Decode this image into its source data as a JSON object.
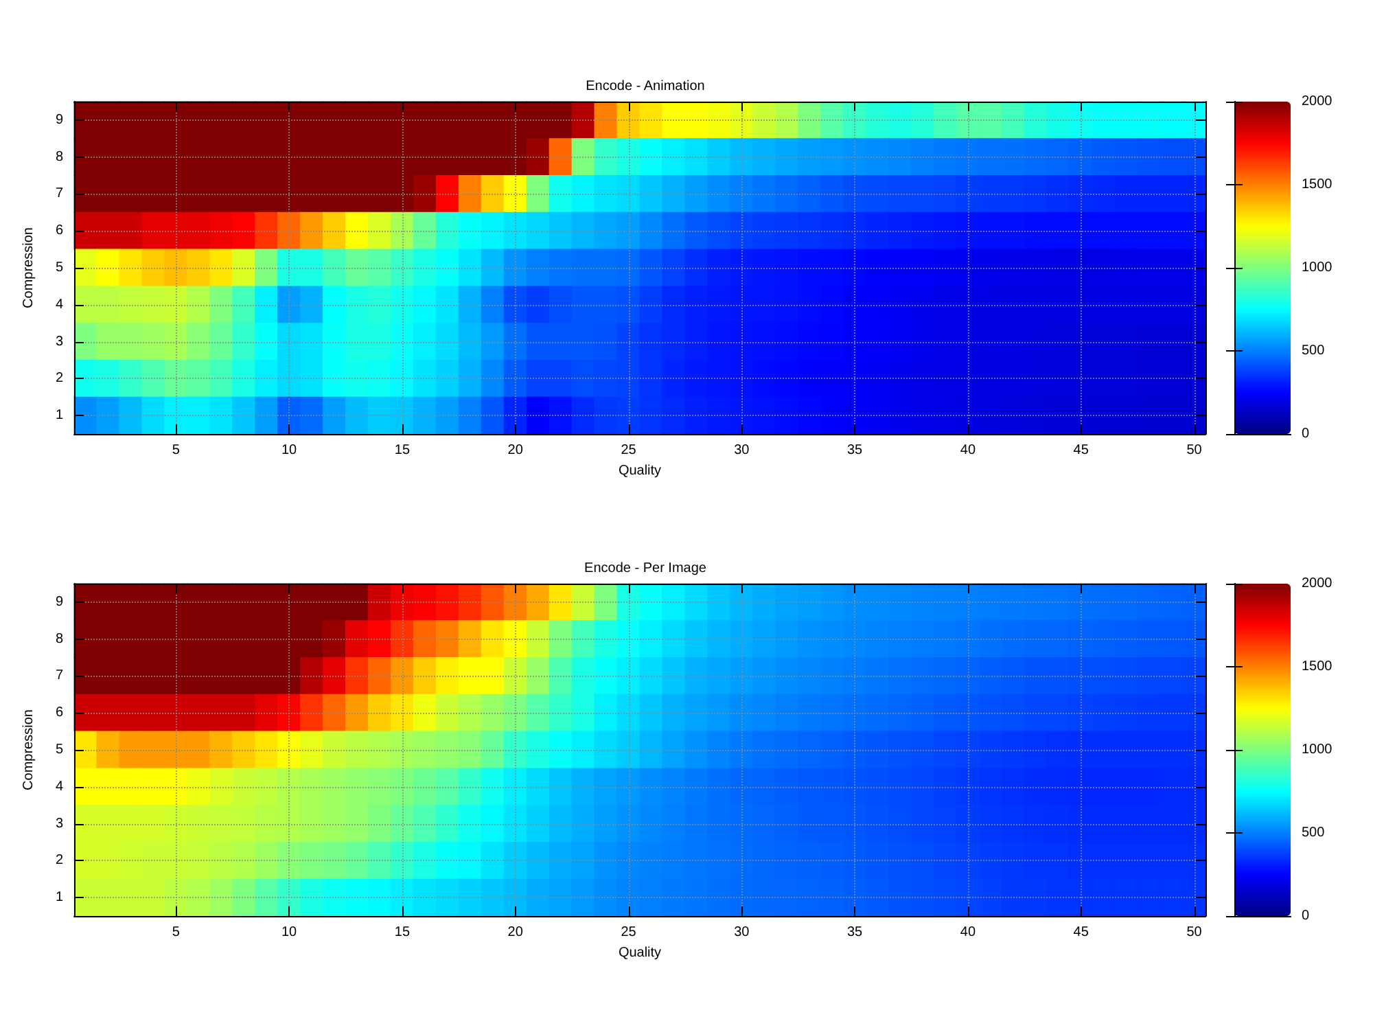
{
  "chart_data": [
    {
      "type": "heatmap",
      "title": "Encode - Animation",
      "xlabel": "Quality",
      "ylabel": "Compression",
      "categories": [
        null,
        null,
        null,
        null,
        "5",
        null,
        null,
        null,
        null,
        "10",
        null,
        null,
        null,
        null,
        "15",
        null,
        null,
        null,
        null,
        "20",
        null,
        null,
        null,
        null,
        "25",
        null,
        null,
        null,
        null,
        "30",
        null,
        null,
        null,
        null,
        "35",
        null,
        null,
        null,
        null,
        "40",
        null,
        null,
        null,
        null,
        "45",
        null,
        null,
        null,
        null,
        "50"
      ],
      "y_categories": [
        "9",
        "8",
        "7",
        "6",
        "5",
        "4",
        "3",
        "2",
        "1"
      ],
      "cells": [
        [
          2000,
          2000,
          2000,
          2000,
          2000,
          2000,
          2000,
          2000,
          2000,
          2000,
          2000,
          2000,
          2000,
          2000,
          2000,
          2000,
          2000,
          2000,
          2000,
          2000,
          2000,
          2000,
          1900,
          1500,
          1350,
          1300,
          1250,
          1250,
          1230,
          1200,
          1150,
          1100,
          1000,
          920,
          860,
          820,
          800,
          820,
          880,
          920,
          920,
          880,
          820,
          790,
          770,
          760,
          760,
          760,
          750,
          750
        ],
        [
          2000,
          2000,
          2000,
          2000,
          2000,
          2000,
          2000,
          2000,
          2000,
          2000,
          2000,
          2000,
          2000,
          2000,
          2000,
          2000,
          2000,
          2000,
          2000,
          2000,
          1950,
          1550,
          1000,
          850,
          800,
          760,
          720,
          690,
          650,
          620,
          600,
          580,
          560,
          550,
          540,
          530,
          520,
          500,
          490,
          480,
          475,
          470,
          460,
          450,
          440,
          430,
          420,
          410,
          400,
          400
        ],
        [
          2000,
          2000,
          2000,
          2000,
          2000,
          2000,
          2000,
          2000,
          2000,
          2000,
          2000,
          2000,
          2000,
          2000,
          2000,
          1950,
          1750,
          1500,
          1350,
          1250,
          1000,
          780,
          730,
          700,
          680,
          640,
          600,
          560,
          530,
          500,
          480,
          460,
          440,
          420,
          400,
          395,
          390,
          385,
          380,
          370,
          365,
          360,
          350,
          340,
          330,
          325,
          320,
          320,
          320,
          320
        ],
        [
          1850,
          1850,
          1850,
          1800,
          1800,
          1800,
          1780,
          1750,
          1650,
          1550,
          1450,
          1350,
          1250,
          1180,
          1080,
          950,
          820,
          760,
          730,
          700,
          670,
          640,
          610,
          580,
          560,
          520,
          470,
          430,
          400,
          380,
          370,
          360,
          350,
          340,
          330,
          320,
          310,
          300,
          290,
          280,
          275,
          275,
          270,
          270,
          270,
          270,
          270,
          270,
          270,
          270
        ],
        [
          1200,
          1250,
          1300,
          1350,
          1380,
          1350,
          1300,
          1180,
          1000,
          800,
          800,
          880,
          950,
          920,
          860,
          800,
          760,
          700,
          620,
          540,
          500,
          480,
          470,
          470,
          460,
          420,
          380,
          340,
          310,
          300,
          290,
          280,
          270,
          265,
          260,
          250,
          245,
          240,
          230,
          220,
          215,
          210,
          205,
          200,
          200,
          200,
          205,
          210,
          210,
          210
        ],
        [
          1120,
          1120,
          1130,
          1140,
          1150,
          1100,
          1000,
          880,
          720,
          560,
          600,
          750,
          800,
          820,
          780,
          740,
          700,
          600,
          500,
          400,
          370,
          400,
          420,
          420,
          410,
          370,
          330,
          310,
          300,
          290,
          285,
          280,
          270,
          260,
          250,
          240,
          230,
          220,
          210,
          200,
          195,
          195,
          190,
          190,
          190,
          190,
          190,
          190,
          190,
          190
        ],
        [
          1000,
          1050,
          1050,
          1060,
          1080,
          1020,
          950,
          850,
          760,
          680,
          700,
          760,
          800,
          800,
          760,
          720,
          680,
          620,
          550,
          470,
          420,
          420,
          420,
          410,
          380,
          350,
          330,
          310,
          290,
          280,
          275,
          270,
          260,
          255,
          250,
          240,
          230,
          220,
          210,
          200,
          195,
          190,
          185,
          180,
          180,
          175,
          175,
          170,
          170,
          170
        ],
        [
          780,
          800,
          850,
          900,
          950,
          930,
          880,
          800,
          720,
          680,
          700,
          760,
          780,
          770,
          740,
          700,
          660,
          600,
          520,
          430,
          380,
          380,
          400,
          390,
          380,
          350,
          320,
          300,
          290,
          280,
          270,
          260,
          250,
          245,
          240,
          230,
          220,
          210,
          200,
          200,
          195,
          190,
          185,
          180,
          180,
          175,
          175,
          170,
          170,
          170
        ],
        [
          530,
          560,
          620,
          680,
          720,
          720,
          700,
          640,
          560,
          440,
          460,
          560,
          620,
          650,
          640,
          600,
          560,
          500,
          420,
          320,
          250,
          280,
          330,
          360,
          370,
          350,
          330,
          310,
          300,
          290,
          280,
          270,
          260,
          250,
          240,
          230,
          220,
          210,
          200,
          190,
          185,
          180,
          175,
          170,
          170,
          165,
          165,
          160,
          160,
          160
        ]
      ],
      "clim": [
        0,
        2000
      ],
      "cticks": [
        0,
        500,
        1000,
        1500,
        2000
      ],
      "grid": true
    },
    {
      "type": "heatmap",
      "title": "Encode - Per Image",
      "xlabel": "Quality",
      "ylabel": "Compression",
      "categories": [
        null,
        null,
        null,
        null,
        "5",
        null,
        null,
        null,
        null,
        "10",
        null,
        null,
        null,
        null,
        "15",
        null,
        null,
        null,
        null,
        "20",
        null,
        null,
        null,
        null,
        "25",
        null,
        null,
        null,
        null,
        "30",
        null,
        null,
        null,
        null,
        "35",
        null,
        null,
        null,
        null,
        "40",
        null,
        null,
        null,
        null,
        "45",
        null,
        null,
        null,
        null,
        "50"
      ],
      "y_categories": [
        "9",
        "8",
        "7",
        "6",
        "5",
        "4",
        "3",
        "2",
        "1"
      ],
      "cells": [
        [
          2000,
          2000,
          2000,
          2000,
          2000,
          2000,
          2000,
          2000,
          2000,
          2000,
          2000,
          2000,
          2000,
          1850,
          1780,
          1760,
          1720,
          1660,
          1580,
          1500,
          1420,
          1300,
          1150,
          1000,
          800,
          760,
          720,
          680,
          640,
          610,
          590,
          570,
          560,
          545,
          530,
          525,
          520,
          510,
          505,
          500,
          495,
          490,
          485,
          480,
          470,
          465,
          460,
          450,
          445,
          440
        ],
        [
          2000,
          2000,
          2000,
          2000,
          2000,
          2000,
          2000,
          2000,
          2000,
          2000,
          2000,
          1950,
          1800,
          1750,
          1650,
          1550,
          1500,
          1400,
          1300,
          1250,
          1150,
          1000,
          880,
          800,
          760,
          720,
          680,
          640,
          610,
          590,
          570,
          555,
          540,
          530,
          520,
          510,
          500,
          495,
          490,
          480,
          470,
          460,
          455,
          450,
          445,
          440,
          435,
          430,
          425,
          420
        ],
        [
          2000,
          2000,
          2000,
          2000,
          2000,
          2000,
          2000,
          2000,
          2000,
          2000,
          1900,
          1800,
          1650,
          1550,
          1450,
          1350,
          1280,
          1250,
          1250,
          1150,
          1050,
          900,
          800,
          760,
          720,
          680,
          640,
          600,
          580,
          560,
          545,
          530,
          515,
          505,
          495,
          485,
          475,
          465,
          455,
          445,
          435,
          425,
          415,
          410,
          405,
          400,
          395,
          390,
          385,
          380
        ],
        [
          1850,
          1850,
          1850,
          1850,
          1850,
          1850,
          1850,
          1850,
          1800,
          1750,
          1650,
          1550,
          1450,
          1350,
          1300,
          1220,
          1150,
          1100,
          1050,
          1000,
          920,
          850,
          800,
          720,
          680,
          640,
          600,
          570,
          550,
          530,
          515,
          500,
          490,
          480,
          470,
          460,
          450,
          440,
          430,
          420,
          410,
          400,
          390,
          385,
          380,
          375,
          370,
          365,
          360,
          360
        ],
        [
          1300,
          1400,
          1450,
          1450,
          1450,
          1450,
          1400,
          1350,
          1300,
          1250,
          1200,
          1150,
          1120,
          1100,
          1080,
          1060,
          1040,
          1020,
          950,
          850,
          800,
          760,
          720,
          680,
          650,
          610,
          570,
          540,
          510,
          490,
          475,
          460,
          450,
          440,
          430,
          420,
          410,
          400,
          390,
          380,
          370,
          360,
          350,
          345,
          340,
          340,
          340,
          340,
          340,
          340
        ],
        [
          1250,
          1250,
          1250,
          1250,
          1250,
          1220,
          1180,
          1150,
          1130,
          1100,
          1080,
          1060,
          1040,
          1020,
          1000,
          960,
          920,
          850,
          780,
          720,
          680,
          640,
          600,
          570,
          550,
          530,
          510,
          490,
          470,
          455,
          445,
          435,
          425,
          420,
          415,
          405,
          395,
          385,
          375,
          365,
          355,
          345,
          335,
          330,
          325,
          325,
          325,
          325,
          330,
          330
        ],
        [
          1170,
          1170,
          1170,
          1170,
          1160,
          1150,
          1140,
          1130,
          1110,
          1100,
          1080,
          1060,
          1040,
          1000,
          950,
          900,
          840,
          780,
          740,
          700,
          660,
          620,
          590,
          560,
          540,
          520,
          500,
          485,
          470,
          460,
          450,
          440,
          430,
          425,
          420,
          410,
          400,
          390,
          380,
          370,
          360,
          350,
          345,
          340,
          335,
          335,
          335,
          335,
          335,
          335
        ],
        [
          1170,
          1170,
          1160,
          1150,
          1150,
          1140,
          1120,
          1100,
          1060,
          1020,
          1000,
          980,
          950,
          900,
          850,
          800,
          760,
          740,
          700,
          650,
          620,
          590,
          570,
          540,
          520,
          505,
          495,
          485,
          475,
          465,
          455,
          445,
          440,
          435,
          430,
          420,
          410,
          400,
          390,
          380,
          370,
          360,
          355,
          350,
          345,
          345,
          345,
          345,
          345,
          345
        ],
        [
          1150,
          1150,
          1150,
          1150,
          1120,
          1100,
          1060,
          1000,
          920,
          850,
          800,
          770,
          760,
          740,
          720,
          700,
          680,
          660,
          640,
          620,
          590,
          570,
          550,
          530,
          510,
          500,
          490,
          480,
          470,
          460,
          455,
          450,
          445,
          440,
          435,
          425,
          415,
          405,
          395,
          385,
          375,
          365,
          360,
          355,
          350,
          350,
          350,
          350,
          350,
          350
        ]
      ],
      "clim": [
        0,
        2000
      ],
      "cticks": [
        0,
        500,
        1000,
        1500,
        2000
      ],
      "grid": true
    }
  ]
}
